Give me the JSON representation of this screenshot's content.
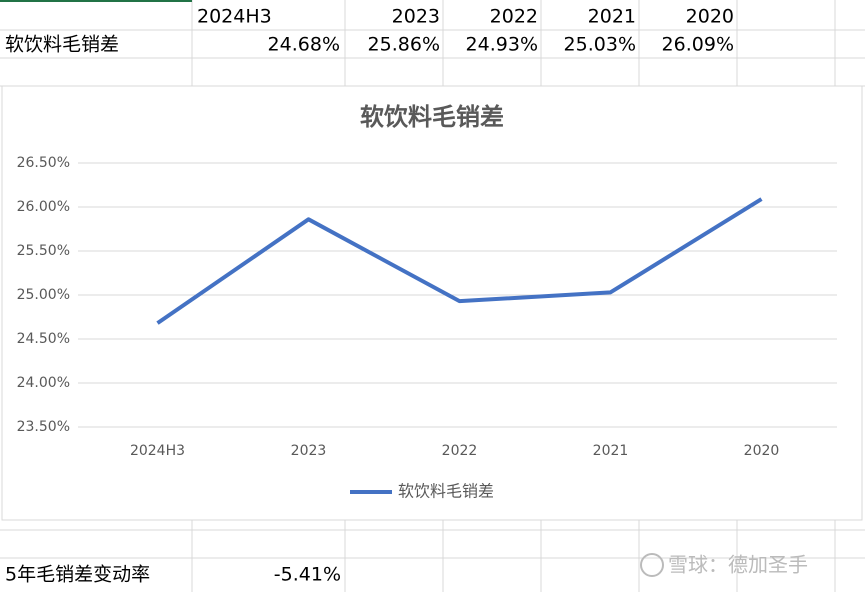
{
  "sheet": {
    "columns": [
      "2024H3",
      "2023",
      "2022",
      "2021",
      "2020"
    ],
    "rows": [
      {
        "label": "软饮料毛销差",
        "cells": [
          "24.68%",
          "25.86%",
          "24.93%",
          "25.03%",
          "26.09%"
        ]
      }
    ],
    "summary": {
      "label": "5年毛销差变动率",
      "value": "-5.41%"
    }
  },
  "watermark": "雪球：德加圣手",
  "chart_data": {
    "type": "line",
    "title": "软饮料毛销差",
    "categories": [
      "2024H3",
      "2023",
      "2022",
      "2021",
      "2020"
    ],
    "series": [
      {
        "name": "软饮料毛销差",
        "color": "#4472c4",
        "values": [
          24.68,
          25.86,
          24.93,
          25.03,
          26.09
        ]
      }
    ],
    "ylim": [
      23.5,
      26.5
    ],
    "yticks": [
      {
        "value": 23.5,
        "label": "23.50%"
      },
      {
        "value": 24,
        "label": "24.00%"
      },
      {
        "value": 24.5,
        "label": "24.50%"
      },
      {
        "value": 25,
        "label": "25.00%"
      },
      {
        "value": 25.5,
        "label": "25.50%"
      },
      {
        "value": 26,
        "label": "26.00%"
      },
      {
        "value": 26.5,
        "label": "26.50%"
      }
    ],
    "grid": true,
    "legend": "bottom"
  }
}
